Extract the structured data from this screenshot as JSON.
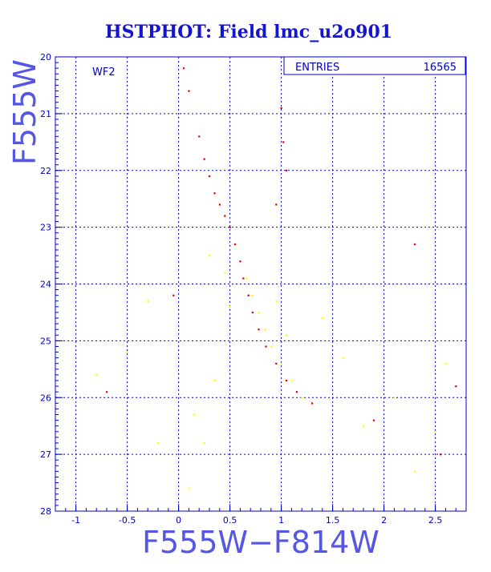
{
  "chart_data": {
    "type": "scatter",
    "title": "HSTPHOT: Field lmc_u2o901",
    "xlabel": "F555W−F814W",
    "ylabel": "F555W",
    "xlim": [
      -1.2,
      2.8
    ],
    "ylim": [
      28,
      20
    ],
    "y_inverted": true,
    "x_ticks": [
      -1,
      -0.5,
      0,
      0.5,
      1,
      1.5,
      2,
      2.5
    ],
    "x_tick_labels": [
      "-1",
      "-0.5",
      "0",
      "0.5",
      "1",
      "1.5",
      "2",
      "2.5"
    ],
    "y_ticks": [
      20,
      21,
      22,
      23,
      24,
      25,
      26,
      27,
      28
    ],
    "y_tick_labels": [
      "20",
      "21",
      "22",
      "23",
      "24",
      "25",
      "26",
      "27",
      "28"
    ],
    "grid": true,
    "panel_label": "WF2",
    "stats": {
      "label": "ENTRIES",
      "value": "16565"
    },
    "colors": {
      "frame": "#0000cc",
      "grid": "#0000cc",
      "title": "#1515cc",
      "axis_label": "#5555e6",
      "point_primary": "#dd0000",
      "point_secondary": "#ffff00"
    },
    "series": [
      {
        "color": "#ffff00",
        "points": [
          [
            0.55,
            23.3
          ],
          [
            0.6,
            23.6
          ],
          [
            0.66,
            23.9
          ],
          [
            0.72,
            24.2
          ],
          [
            0.78,
            24.5
          ],
          [
            0.84,
            24.8
          ],
          [
            0.9,
            25.1
          ],
          [
            1.0,
            25.4
          ],
          [
            1.1,
            25.7
          ],
          [
            1.2,
            26.0
          ],
          [
            0.45,
            23.8
          ],
          [
            0.5,
            24.4
          ],
          [
            0.95,
            24.3
          ],
          [
            1.05,
            24.9
          ],
          [
            -0.8,
            25.6
          ],
          [
            -0.5,
            25.2
          ],
          [
            -0.3,
            24.3
          ],
          [
            0.15,
            26.3
          ],
          [
            0.25,
            26.8
          ],
          [
            0.1,
            27.6
          ],
          [
            1.6,
            25.3
          ],
          [
            1.8,
            26.5
          ],
          [
            2.1,
            26.0
          ],
          [
            2.3,
            27.3
          ],
          [
            2.5,
            26.6
          ],
          [
            2.6,
            25.4
          ],
          [
            -0.2,
            26.8
          ],
          [
            0.3,
            23.5
          ],
          [
            1.4,
            24.6
          ],
          [
            0.35,
            25.7
          ]
        ]
      },
      {
        "color": "#dd0000",
        "points": [
          [
            0.2,
            21.4
          ],
          [
            0.25,
            21.8
          ],
          [
            0.3,
            22.1
          ],
          [
            0.35,
            22.4
          ],
          [
            0.4,
            22.6
          ],
          [
            0.45,
            22.8
          ],
          [
            0.5,
            23.0
          ],
          [
            0.55,
            23.3
          ],
          [
            0.6,
            23.6
          ],
          [
            0.63,
            23.9
          ],
          [
            0.68,
            24.2
          ],
          [
            0.72,
            24.5
          ],
          [
            0.78,
            24.8
          ],
          [
            0.85,
            25.1
          ],
          [
            0.95,
            25.4
          ],
          [
            1.05,
            25.7
          ],
          [
            1.15,
            25.9
          ],
          [
            1.3,
            26.1
          ],
          [
            1.0,
            20.9
          ],
          [
            1.02,
            21.5
          ],
          [
            1.05,
            22.0
          ],
          [
            0.95,
            22.6
          ],
          [
            0.05,
            20.2
          ],
          [
            0.1,
            20.6
          ],
          [
            -0.7,
            25.9
          ],
          [
            2.3,
            23.3
          ],
          [
            2.7,
            25.8
          ],
          [
            2.55,
            27.0
          ],
          [
            1.9,
            26.4
          ],
          [
            -0.05,
            24.2
          ]
        ]
      }
    ]
  }
}
